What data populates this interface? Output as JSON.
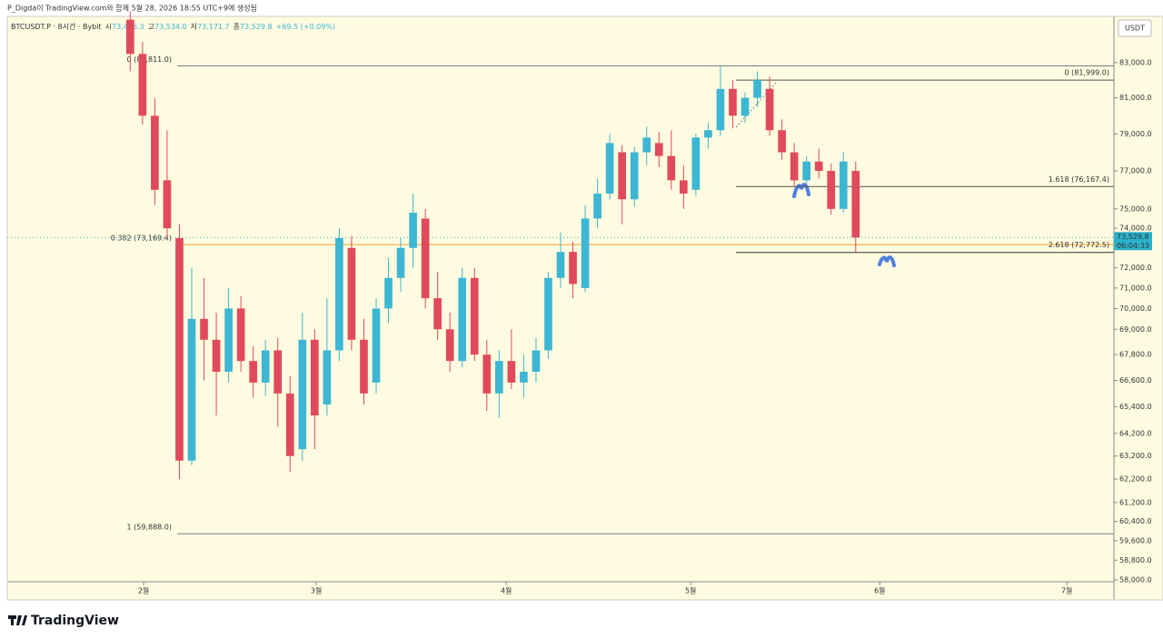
{
  "header": "P_Digda이 TradingView.com와 함께 5월 28, 2026 18:55 UTC+9에 생성됨",
  "brand": "TradingView",
  "chart_data": {
    "type": "candlestick",
    "legend": {
      "symbol": "BTCUSDT.P · 8시간 · Bybit",
      "fields": [
        {
          "label": "시",
          "value": "73,466.3"
        },
        {
          "label": "고",
          "value": "73,534.0"
        },
        {
          "label": "저",
          "value": "73,171.7"
        },
        {
          "label": "종",
          "value": "73,529.8"
        }
      ],
      "change": "+69.5 (+0.09%)"
    },
    "currency": "USDT",
    "up_color": "#3cb6d3",
    "down_color": "#e04a5c",
    "log_scale": true,
    "open": [
      85500,
      83500,
      80000,
      76500,
      73500,
      63000,
      69500,
      68500,
      67000,
      70000,
      67500,
      66500,
      68000,
      66000,
      63500,
      68500,
      65500,
      68000,
      73000,
      68500,
      66500,
      70000,
      71500,
      73000,
      74500,
      70500,
      69000,
      67500,
      71500,
      67800,
      66000,
      67500,
      66500,
      67000,
      68000,
      71500,
      72800,
      71000,
      74500,
      75800,
      78000,
      75500,
      78000,
      78500,
      77800,
      76500,
      76000,
      78800,
      79200,
      81500,
      80000,
      81000,
      81500,
      79200,
      78000,
      76500,
      77500,
      77000,
      75000,
      77000
    ],
    "high": [
      86000,
      84200,
      81000,
      79200,
      74200,
      72000,
      71500,
      69800,
      71000,
      70600,
      68200,
      68500,
      68600,
      66800,
      69800,
      69000,
      70500,
      74000,
      73600,
      69500,
      70500,
      72500,
      73500,
      75800,
      75000,
      71800,
      69800,
      72000,
      72000,
      68500,
      68000,
      69000,
      67800,
      68600,
      71800,
      73800,
      73300,
      75200,
      76600,
      79000,
      78400,
      78300,
      79400,
      79100,
      79200,
      77300,
      79000,
      79600,
      82800,
      82000,
      81300,
      82500,
      82200,
      79800,
      78500,
      77800,
      78200,
      77400,
      78000,
      77500
    ],
    "low": [
      82500,
      79500,
      75200,
      73500,
      62200,
      62800,
      66600,
      65000,
      66500,
      67000,
      65800,
      65900,
      64500,
      62500,
      63000,
      63500,
      65000,
      67500,
      68000,
      65500,
      66000,
      69300,
      70800,
      72000,
      70000,
      68500,
      67000,
      67200,
      67500,
      65200,
      64900,
      66200,
      65800,
      66500,
      67600,
      71000,
      70500,
      70800,
      74000,
      75500,
      74200,
      75100,
      77300,
      77200,
      76000,
      75000,
      75700,
      78200,
      78900,
      79300,
      79600,
      80500,
      78900,
      77600,
      76200,
      76300,
      76600,
      74700,
      74800,
      72800
    ],
    "close": [
      83500,
      80000,
      76000,
      74000,
      63000,
      69500,
      68500,
      67000,
      70000,
      67500,
      66500,
      68000,
      66000,
      63200,
      68500,
      65000,
      68000,
      73500,
      68500,
      66000,
      70000,
      71500,
      73000,
      74800,
      70500,
      69000,
      67500,
      71500,
      67800,
      66000,
      67500,
      66500,
      67000,
      68000,
      71500,
      72800,
      71200,
      74500,
      75800,
      78500,
      75500,
      78000,
      78800,
      77800,
      76500,
      75800,
      78800,
      79200,
      81500,
      80000,
      81000,
      82000,
      79200,
      78000,
      76500,
      77500,
      77000,
      75000,
      77500,
      73529.8
    ],
    "xlim": [
      -10,
      80
    ],
    "xticks": [
      {
        "value": 1.09,
        "label": "2월"
      },
      {
        "value": 15.13,
        "label": "3월"
      },
      {
        "value": 30.58,
        "label": "4월"
      },
      {
        "value": 45.58,
        "label": "5월"
      },
      {
        "value": 60.95,
        "label": "6월"
      },
      {
        "value": 76.17,
        "label": "7월"
      }
    ],
    "ylim": [
      57930,
      85700
    ],
    "yticks": [
      {
        "value": 83000,
        "label": "83,000.0"
      },
      {
        "value": 81000,
        "label": "81,000.0"
      },
      {
        "value": 79000,
        "label": "79,000.0"
      },
      {
        "value": 77000,
        "label": "77,000.0"
      },
      {
        "value": 75000,
        "label": "75,000.0"
      },
      {
        "value": 74000,
        "label": "74,000.0"
      },
      {
        "value": 72000,
        "label": "72,000.0"
      },
      {
        "value": 71000,
        "label": "71,000.0"
      },
      {
        "value": 70000,
        "label": "70,000.0"
      },
      {
        "value": 69000,
        "label": "69,000.0"
      },
      {
        "value": 67800,
        "label": "67,800.0"
      },
      {
        "value": 66600,
        "label": "66,600.0"
      },
      {
        "value": 65400,
        "label": "65,400.0"
      },
      {
        "value": 64200,
        "label": "64,200.0"
      },
      {
        "value": 63200,
        "label": "63,200.0"
      },
      {
        "value": 62200,
        "label": "62,200.0"
      },
      {
        "value": 61200,
        "label": "61,200.0"
      },
      {
        "value": 60400,
        "label": "60,400.0"
      },
      {
        "value": 59600,
        "label": "59,600.0"
      },
      {
        "value": 58800,
        "label": "58,800.0"
      },
      {
        "value": 58000,
        "label": "58,000.0"
      }
    ],
    "fib_left": [
      {
        "value": 82811,
        "label": "0 (82,811.0)",
        "color": "#787b86"
      },
      {
        "value": 73169.4,
        "label": "0.382 (73,169.4)",
        "color": "#f0a030"
      },
      {
        "value": 59888,
        "label": "1 (59,888.0)",
        "color": "#787b86"
      }
    ],
    "fib_right": [
      {
        "value": 81999,
        "label": "0 (81,999.0)",
        "color": "#555555"
      },
      {
        "value": 76167.4,
        "label": "1.618 (76,167.4)",
        "color": "#555555"
      },
      {
        "value": 72772.5,
        "label": "2.618 (72,772.5)",
        "color": "#333333"
      }
    ],
    "last_price": {
      "value": 73529.8,
      "label": "73,529.8",
      "color": "#2ab2cc"
    },
    "countdown": "06:04:33"
  }
}
